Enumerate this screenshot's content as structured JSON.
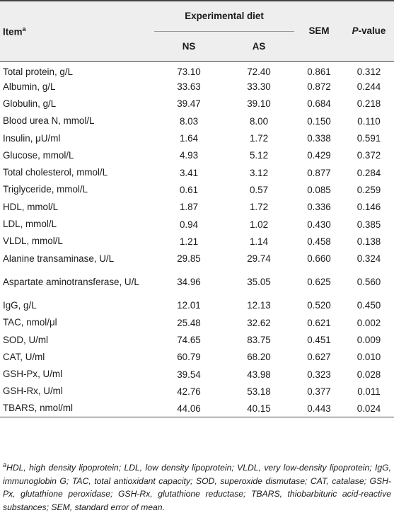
{
  "table": {
    "header": {
      "item": "Item",
      "item_sup": "a",
      "experimental_diet": "Experimental diet",
      "ns": "NS",
      "as": "AS",
      "sem": "SEM",
      "p_italic": "P",
      "p_rest": "-value"
    },
    "rows": [
      {
        "item": "Total protein, g/L",
        "ns": "73.10",
        "as": "72.40",
        "sem": "0.861",
        "p": "0.312"
      },
      {
        "item": "Albumin, g/L",
        "ns": "33.63",
        "as": "33.30",
        "sem": "0.872",
        "p": "0.244"
      },
      {
        "item": "Globulin, g/L",
        "ns": "39.47",
        "as": "39.10",
        "sem": "0.684",
        "p": "0.218"
      },
      {
        "item": "Blood urea N, mmol/L",
        "ns": "8.03",
        "as": "8.00",
        "sem": "0.150",
        "p": "0.110"
      },
      {
        "item": "Insulin, μU/ml",
        "ns": "1.64",
        "as": "1.72",
        "sem": "0.338",
        "p": "0.591"
      },
      {
        "item": "Glucose, mmol/L",
        "ns": "4.93",
        "as": "5.12",
        "sem": "0.429",
        "p": "0.372"
      },
      {
        "item": "Total cholesterol, mmol/L",
        "ns": "3.41",
        "as": "3.12",
        "sem": "0.877",
        "p": "0.284"
      },
      {
        "item": "Triglyceride, mmol/L",
        "ns": "0.61",
        "as": "0.57",
        "sem": "0.085",
        "p": "0.259"
      },
      {
        "item": "HDL, mmol/L",
        "ns": "1.87",
        "as": "1.72",
        "sem": "0.336",
        "p": "0.146"
      },
      {
        "item": "LDL, mmol/L",
        "ns": "0.94",
        "as": "1.02",
        "sem": "0.430",
        "p": "0.385"
      },
      {
        "item": "VLDL, mmol/L",
        "ns": "1.21",
        "as": "1.14",
        "sem": "0.458",
        "p": "0.138"
      },
      {
        "item": "Alanine transaminase, U/L",
        "ns": "29.85",
        "as": "29.74",
        "sem": "0.660",
        "p": "0.324"
      },
      {
        "item": "Aspartate aminotransferase, U/L",
        "ns": "34.96",
        "as": "35.05",
        "sem": "0.625",
        "p": "0.560"
      },
      {
        "item": "IgG, g/L",
        "ns": "12.01",
        "as": "12.13",
        "sem": "0.520",
        "p": "0.450"
      },
      {
        "item": "TAC, nmol/μl",
        "ns": "25.48",
        "as": "32.62",
        "sem": "0.621",
        "p": "0.002"
      },
      {
        "item": "SOD, U/ml",
        "ns": "74.65",
        "as": "83.75",
        "sem": "0.451",
        "p": "0.009"
      },
      {
        "item": "CAT, U/ml",
        "ns": "60.79",
        "as": "68.20",
        "sem": "0.627",
        "p": "0.010"
      },
      {
        "item": "GSH-Px, U/ml",
        "ns": "39.54",
        "as": "43.98",
        "sem": "0.323",
        "p": "0.028"
      },
      {
        "item": "GSH-Rx, U/ml",
        "ns": "42.76",
        "as": "53.18",
        "sem": "0.377",
        "p": "0.011"
      },
      {
        "item": "TBARS, nmol/ml",
        "ns": "44.06",
        "as": "40.15",
        "sem": "0.443",
        "p": "0.024"
      }
    ]
  },
  "footnote": {
    "marker": "a",
    "text": "HDL, high density lipoprotein; LDL, low density lipoprotein; VLDL, very low-density lipoprotein; IgG, immunoglobin G; TAC, total antioxidant capacity; SOD, superoxide dismutase; CAT, catalase; GSH-Px, glutathione peroxidase; GSH-Rx, glutathione reductase; TBARS, thiobarbituric acid-reactive substances; SEM, standard error of mean."
  }
}
